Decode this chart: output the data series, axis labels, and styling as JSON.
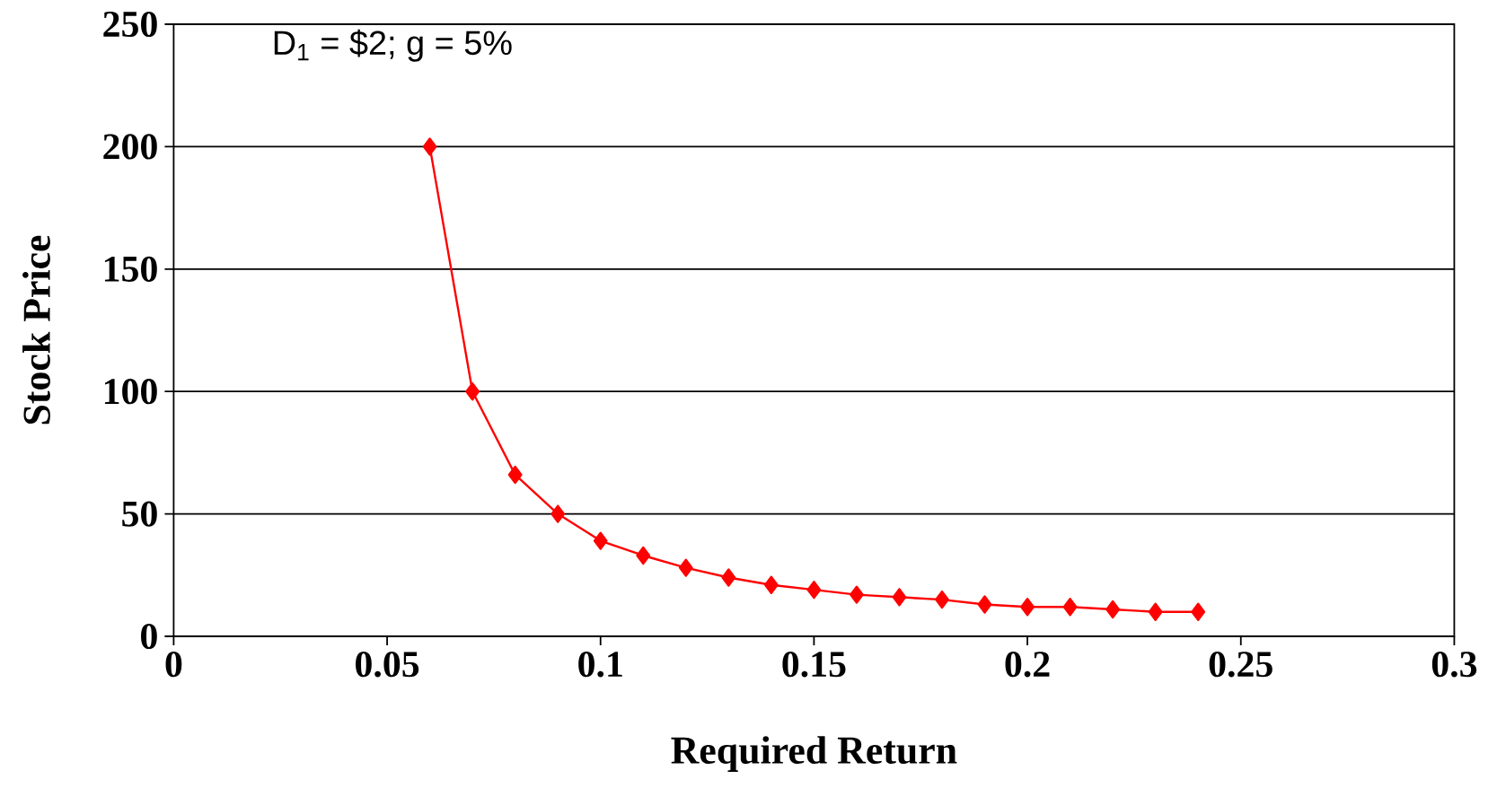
{
  "chart_data": {
    "type": "line",
    "xlabel": "Required Return",
    "ylabel": "Stock Price",
    "annotations": [
      "D$_{1}$ = $2; g = 5%"
    ],
    "x": [
      0.06,
      0.07,
      0.08,
      0.09,
      0.1,
      0.11,
      0.12,
      0.13,
      0.14,
      0.15,
      0.16,
      0.17,
      0.18,
      0.19,
      0.2,
      0.21,
      0.22,
      0.23,
      0.24
    ],
    "series": [
      {
        "color": "#ff0000",
        "values": [
          200,
          100,
          66,
          50,
          39,
          33,
          28,
          24,
          21,
          19,
          17,
          16,
          15,
          13,
          12,
          12,
          11,
          10,
          10
        ]
      }
    ],
    "xlim": [
      0,
      0.3
    ],
    "ylim": [
      0,
      250
    ],
    "xticks": [
      0,
      0.05,
      0.1,
      0.15,
      0.2,
      0.25,
      0.3
    ],
    "yticks": [
      0,
      50,
      100,
      150,
      200,
      250
    ],
    "grid": "y",
    "marker": "diamond",
    "line_style": "solid"
  }
}
